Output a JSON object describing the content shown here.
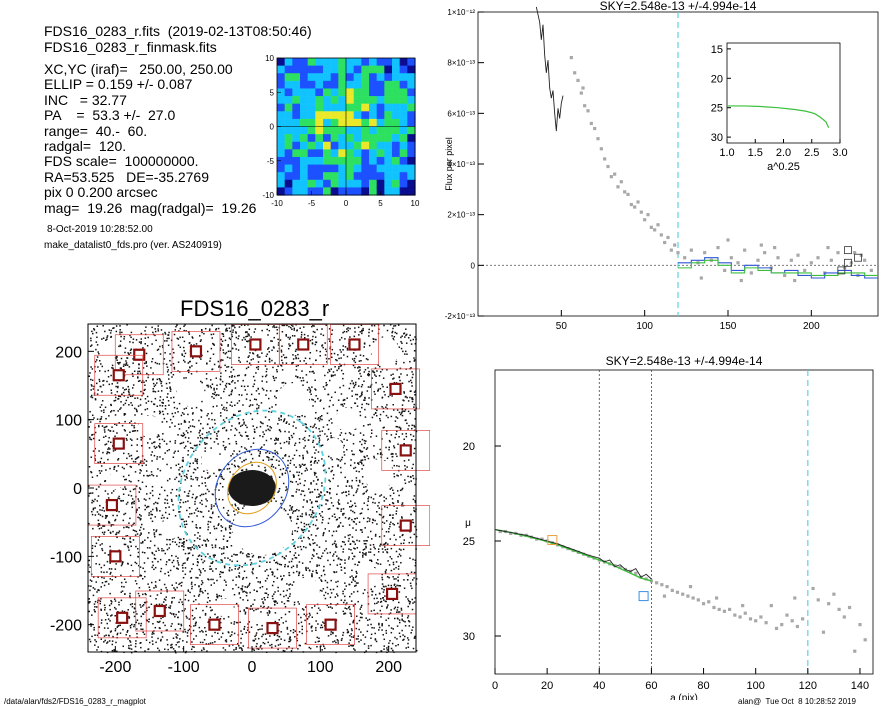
{
  "header": {
    "line1": "FDS16_0283_r.fits  (2019-02-13T08:50:46)",
    "line2": "FDS16_0283_r_finmask.fits"
  },
  "info_lines": [
    "XC,YC (iraf)=   250.00, 250.00",
    "ELLIP = 0.159 +/- 0.087",
    "INC   = 32.77",
    "PA    =  53.3 +/-  27.0",
    "range=  40.-  60.",
    "radgal=  120.",
    "FDS scale=  100000000.",
    "RA=53.525   DE=-35.2769",
    "pix 0 0.200 arcsec",
    "mag=  19.26  mag(radgal)=  19.26"
  ],
  "timestamp": "8-Oct-2019 10:28:52.00",
  "program": "make_datalist0_fds.pro (ver. AS240919)",
  "footer_left": "/data/alan/fds2/FDS16_0283_r_magplot",
  "footer_right": "alan@  Tue Oct  8 10:28:52 2019",
  "image_title": "FDS16_0283_r",
  "colors": {
    "sky_line": "#5ed2e0",
    "grey_points": "#a8a8a8",
    "mask_boxes": "#e04848",
    "profile_green": "#3bbf3b",
    "profile_blue": "#2f56d6"
  },
  "chart_data": [
    {
      "type": "heatmap",
      "name": "contour-thumbnail",
      "xlim": [
        -10,
        10
      ],
      "ylim": [
        -10,
        10
      ],
      "xticks": [
        "-10",
        "-5",
        "0",
        "5",
        "10"
      ],
      "yticks": [
        "10",
        "5",
        "0",
        "-5",
        "-10"
      ],
      "colormap": [
        "#0a0a8a",
        "#1e50ff",
        "#12c8ff",
        "#2ee85a",
        "#f4f020",
        "#ff8a10",
        "#ff1e10"
      ]
    },
    {
      "type": "scatter",
      "name": "sky-image",
      "title": "FDS16_0283_r",
      "xlim": [
        -240,
        240
      ],
      "ylim": [
        -240,
        240
      ],
      "xticks": [
        "-200",
        "-100",
        "0",
        "100",
        "200"
      ],
      "yticks": [
        "200",
        "100",
        "0",
        "-100",
        "-200"
      ],
      "mask_boxes": [
        [
          -165,
          195
        ],
        [
          -82,
          200
        ],
        [
          5,
          210
        ],
        [
          75,
          210
        ],
        [
          150,
          210
        ],
        [
          -195,
          165
        ],
        [
          210,
          145
        ],
        [
          -195,
          65
        ],
        [
          225,
          55
        ],
        [
          -205,
          -25
        ],
        [
          225,
          -55
        ],
        [
          -200,
          -100
        ],
        [
          205,
          -155
        ],
        [
          -135,
          -180
        ],
        [
          -55,
          -200
        ],
        [
          30,
          -205
        ],
        [
          115,
          -200
        ],
        [
          -190,
          -190
        ]
      ],
      "ellipses": [
        {
          "a": 120,
          "b": 100,
          "pa": 53.3,
          "style": "sky"
        },
        {
          "a": 60,
          "b": 50,
          "pa": 53.3,
          "style": "outer"
        },
        {
          "a": 40,
          "b": 33,
          "pa": 53.3,
          "style": "inner"
        }
      ]
    },
    {
      "type": "line",
      "name": "flux-profile",
      "title": "SKY=2.548e-13 +/-4.994e-14",
      "ylabel": "Flux per pixel",
      "xlim": [
        0,
        240
      ],
      "ylim": [
        -2e-13,
        1e-12
      ],
      "xticks": [
        "50",
        "100",
        "150",
        "200"
      ],
      "yticks": [
        "1×10⁻¹²",
        "8×10⁻¹³",
        "6×10⁻¹³",
        "4×10⁻¹³",
        "2×10⁻¹³",
        "0",
        "-2×10⁻¹³"
      ],
      "sky_radius": 120,
      "points": [
        [
          56,
          8.2e-13
        ],
        [
          58,
          7.6e-13
        ],
        [
          60,
          7.3e-13
        ],
        [
          62,
          6.8e-13
        ],
        [
          63,
          7e-13
        ],
        [
          64,
          6.3e-13
        ],
        [
          66,
          6.1e-13
        ],
        [
          68,
          5.6e-13
        ],
        [
          70,
          5.4e-13
        ],
        [
          72,
          5e-13
        ],
        [
          74,
          4.6e-13
        ],
        [
          76,
          4.2e-13
        ],
        [
          78,
          3.9e-13
        ],
        [
          80,
          3.5e-13
        ],
        [
          82,
          3.6e-13
        ],
        [
          84,
          3.1e-13
        ],
        [
          86,
          3.3e-13
        ],
        [
          88,
          2.9e-13
        ],
        [
          90,
          2.8e-13
        ],
        [
          92,
          2.4e-13
        ],
        [
          94,
          2.3e-13
        ],
        [
          96,
          2.5e-13
        ],
        [
          98,
          2.1e-13
        ],
        [
          100,
          1.8e-13
        ],
        [
          102,
          2e-13
        ],
        [
          104,
          1.5e-13
        ],
        [
          106,
          1.4e-13
        ],
        [
          108,
          1.6e-13
        ],
        [
          110,
          1.2e-13
        ],
        [
          112,
          9e-14
        ],
        [
          114,
          1.1e-13
        ],
        [
          116,
          6e-14
        ],
        [
          118,
          8e-14
        ],
        [
          120,
          5e-14
        ],
        [
          124,
          3e-14
        ],
        [
          128,
          6e-14
        ],
        [
          132,
          1e-14
        ],
        [
          136,
          5e-14
        ],
        [
          140,
          2e-14
        ],
        [
          144,
          7e-14
        ],
        [
          148,
          -2e-14
        ],
        [
          152,
          3e-14
        ],
        [
          156,
          1e-14
        ],
        [
          160,
          6e-14
        ],
        [
          164,
          -3e-14
        ],
        [
          168,
          2e-14
        ],
        [
          172,
          5e-14
        ],
        [
          176,
          -1e-14
        ],
        [
          180,
          3e-14
        ],
        [
          184,
          -4e-14
        ],
        [
          188,
          2e-14
        ],
        [
          192,
          4e-14
        ],
        [
          196,
          -2e-14
        ],
        [
          200,
          1e-14
        ],
        [
          204,
          3e-14
        ],
        [
          208,
          -3e-14
        ],
        [
          212,
          2e-14
        ],
        [
          216,
          5e-14
        ],
        [
          220,
          -1e-14
        ],
        [
          224,
          1e-14
        ],
        [
          228,
          -4e-14
        ],
        [
          232,
          2e-14
        ],
        [
          236,
          -2e-14
        ],
        [
          150,
          1e-13
        ],
        [
          170,
          8e-14
        ],
        [
          190,
          -6e-14
        ],
        [
          210,
          7e-14
        ],
        [
          230,
          4e-14
        ],
        [
          134,
          -5e-14
        ],
        [
          158,
          -6e-14
        ],
        [
          178,
          7e-14
        ],
        [
          226,
          5e-14
        ]
      ],
      "black_line": [
        [
          35,
          1.02e-12
        ],
        [
          37,
          9.6e-13
        ],
        [
          38,
          8.9e-13
        ],
        [
          39,
          9.5e-13
        ],
        [
          40,
          8.3e-13
        ],
        [
          41,
          7.6e-13
        ],
        [
          42,
          8.1e-13
        ],
        [
          43,
          7e-13
        ],
        [
          44,
          6.6e-13
        ],
        [
          45,
          6.9e-13
        ],
        [
          46,
          6e-13
        ],
        [
          47,
          5.3e-13
        ],
        [
          48,
          6.2e-13
        ],
        [
          49,
          5.8e-13
        ],
        [
          50,
          6.4e-13
        ],
        [
          51,
          6.7e-13
        ]
      ],
      "steps_blue": [
        [
          120,
          1e-14
        ],
        [
          128,
          2e-14
        ],
        [
          136,
          3e-14
        ],
        [
          144,
          1e-14
        ],
        [
          152,
          -2e-14
        ],
        [
          160,
          0.0
        ],
        [
          168,
          -1e-14
        ],
        [
          176,
          -3e-14
        ],
        [
          184,
          -2e-14
        ],
        [
          192,
          -4e-14
        ],
        [
          200,
          -5e-14
        ],
        [
          208,
          -3e-14
        ],
        [
          216,
          -2e-14
        ],
        [
          224,
          -4e-14
        ],
        [
          232,
          -5e-14
        ],
        [
          240,
          -5e-14
        ]
      ],
      "steps_green": [
        [
          120,
          -1e-14
        ],
        [
          128,
          1e-14
        ],
        [
          136,
          2e-14
        ],
        [
          144,
          0.0
        ],
        [
          152,
          -3e-14
        ],
        [
          160,
          -1e-14
        ],
        [
          168,
          -2e-14
        ],
        [
          176,
          -3e-14
        ],
        [
          184,
          -3e-14
        ],
        [
          192,
          -3e-14
        ],
        [
          200,
          -4e-14
        ],
        [
          208,
          -4e-14
        ],
        [
          216,
          -3e-14
        ],
        [
          224,
          -3e-14
        ],
        [
          232,
          -4e-14
        ],
        [
          240,
          -4e-14
        ]
      ],
      "open_squares": [
        [
          218,
          -2e-14
        ],
        [
          222,
          1e-14
        ],
        [
          228,
          3e-14
        ],
        [
          222,
          6e-14
        ]
      ]
    },
    {
      "type": "line",
      "name": "inset-profile",
      "xlabel": "a^0.25",
      "xlim": [
        1.0,
        3.0
      ],
      "ylim": [
        31,
        14
      ],
      "xticks": [
        "1.0",
        "1.5",
        "2.0",
        "2.5",
        "3.0"
      ],
      "yticks": [
        "15",
        "20",
        "25",
        "30"
      ],
      "series": [
        {
          "color": "green",
          "x": [
            1.0,
            1.3,
            1.6,
            1.9,
            2.2,
            2.4,
            2.55,
            2.65,
            2.75,
            2.8
          ],
          "y": [
            24.7,
            24.7,
            24.8,
            25.0,
            25.3,
            25.6,
            26.0,
            26.6,
            27.4,
            28.4
          ]
        }
      ]
    },
    {
      "type": "line",
      "name": "surface-brightness",
      "title": "SKY=2.548e-13 +/-4.994e-14",
      "xlabel": "a (pix)",
      "ylabel": "μ",
      "xlim": [
        0,
        145
      ],
      "ylim": [
        32,
        16
      ],
      "xticks": [
        "0",
        "20",
        "40",
        "60",
        "80",
        "100",
        "120",
        "140"
      ],
      "yticks": [
        "20",
        "25",
        "30"
      ],
      "range_lines": [
        40,
        60
      ],
      "sky_radius": 120,
      "points": [
        [
          2,
          24.5
        ],
        [
          4,
          24.5
        ],
        [
          6,
          24.6
        ],
        [
          8,
          24.6
        ],
        [
          10,
          24.7
        ],
        [
          12,
          24.7
        ],
        [
          14,
          24.8
        ],
        [
          16,
          24.9
        ],
        [
          18,
          24.9
        ],
        [
          20,
          25.0
        ],
        [
          22,
          25.1
        ],
        [
          24,
          25.2
        ],
        [
          26,
          25.3
        ],
        [
          28,
          25.4
        ],
        [
          30,
          25.5
        ],
        [
          32,
          25.6
        ],
        [
          34,
          25.7
        ],
        [
          36,
          25.8
        ],
        [
          38,
          25.9
        ],
        [
          40,
          26.0
        ],
        [
          42,
          26.1
        ],
        [
          44,
          26.2
        ],
        [
          46,
          26.3
        ],
        [
          48,
          26.4
        ],
        [
          50,
          26.5
        ],
        [
          52,
          26.6
        ],
        [
          54,
          26.7
        ],
        [
          56,
          26.9
        ],
        [
          58,
          27.0
        ],
        [
          60,
          27.1
        ],
        [
          62,
          27.2
        ],
        [
          64,
          27.3
        ],
        [
          66,
          27.4
        ],
        [
          68,
          27.6
        ],
        [
          70,
          27.7
        ],
        [
          72,
          27.8
        ],
        [
          74,
          27.9
        ],
        [
          76,
          28.0
        ],
        [
          78,
          28.1
        ],
        [
          80,
          28.3
        ],
        [
          82,
          28.2
        ],
        [
          84,
          28.5
        ],
        [
          86,
          28.6
        ],
        [
          88,
          28.7
        ],
        [
          90,
          28.6
        ],
        [
          92,
          28.9
        ],
        [
          94,
          29.0
        ],
        [
          96,
          28.8
        ],
        [
          98,
          29.1
        ],
        [
          100,
          29.2
        ],
        [
          102,
          29.0
        ],
        [
          104,
          29.3
        ],
        [
          106,
          28.4
        ],
        [
          108,
          29.6
        ],
        [
          110,
          29.4
        ],
        [
          112,
          28.9
        ],
        [
          114,
          29.2
        ],
        [
          116,
          29.5
        ],
        [
          118,
          29.1
        ],
        [
          122,
          27.5
        ],
        [
          124,
          28.1
        ],
        [
          126,
          29.8
        ],
        [
          128,
          28.3
        ],
        [
          130,
          27.8
        ],
        [
          132,
          28.6
        ],
        [
          134,
          29.0
        ],
        [
          136,
          28.5
        ],
        [
          138,
          30.8
        ],
        [
          140,
          29.4
        ],
        [
          142,
          30.2
        ],
        [
          65,
          27.9
        ],
        [
          75,
          27.4
        ],
        [
          85,
          28.0
        ],
        [
          95,
          28.4
        ],
        [
          115,
          28.0
        ]
      ],
      "black_line": [
        [
          0,
          24.4
        ],
        [
          4,
          24.5
        ],
        [
          8,
          24.6
        ],
        [
          12,
          24.7
        ],
        [
          16,
          24.85
        ],
        [
          20,
          25.0
        ],
        [
          24,
          25.15
        ],
        [
          28,
          25.35
        ],
        [
          32,
          25.55
        ],
        [
          36,
          25.75
        ],
        [
          40,
          25.9
        ],
        [
          42,
          26.1
        ],
        [
          44,
          26.0
        ],
        [
          46,
          26.35
        ],
        [
          48,
          26.25
        ],
        [
          50,
          26.5
        ],
        [
          52,
          26.6
        ],
        [
          54,
          26.45
        ],
        [
          56,
          26.9
        ],
        [
          58,
          26.75
        ],
        [
          60,
          27.0
        ]
      ],
      "green_line": [
        [
          0,
          24.4
        ],
        [
          6,
          24.55
        ],
        [
          12,
          24.75
        ],
        [
          18,
          24.95
        ],
        [
          24,
          25.2
        ],
        [
          30,
          25.5
        ],
        [
          36,
          25.8
        ],
        [
          40,
          26.0
        ],
        [
          44,
          26.2
        ],
        [
          48,
          26.45
        ],
        [
          52,
          26.7
        ],
        [
          56,
          26.95
        ],
        [
          60,
          27.1
        ]
      ],
      "open_squares": [
        {
          "x": 22,
          "y": 24.95,
          "color": "orange"
        },
        {
          "x": 57,
          "y": 27.9,
          "color": "blue"
        }
      ]
    }
  ]
}
